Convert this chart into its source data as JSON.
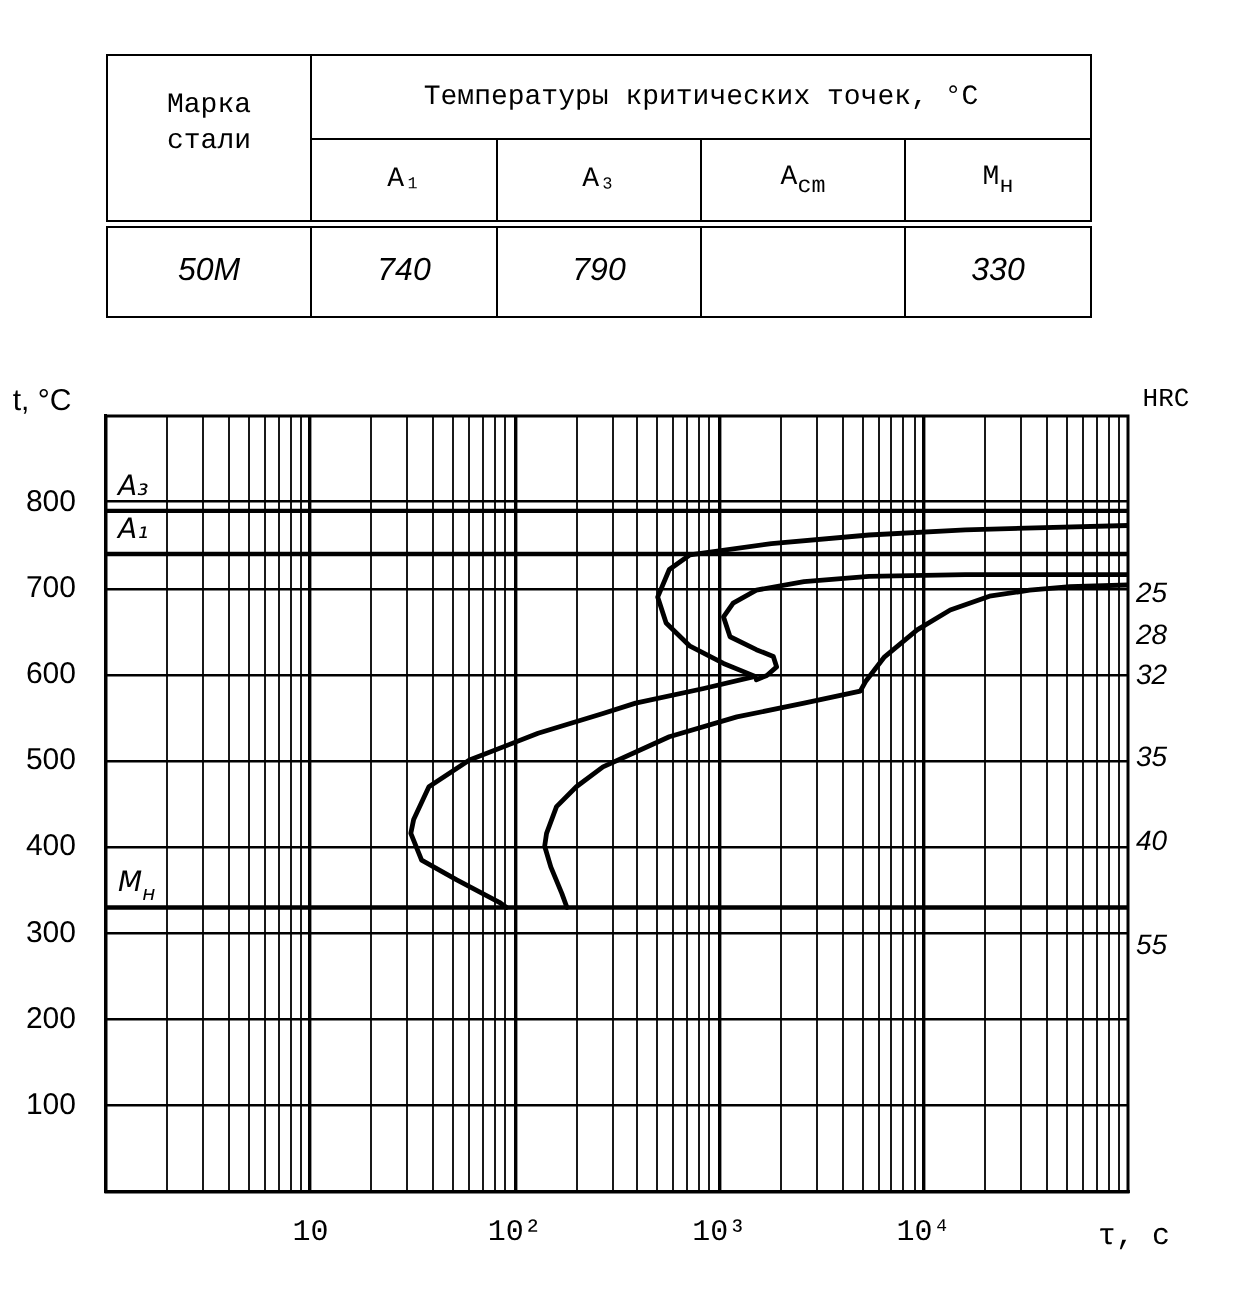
{
  "chart_data": [
    {
      "type": "other",
      "title": "Температуры критических точек, °C",
      "legend_title": "Марка стали",
      "categories": [
        "A₁",
        "A₃",
        "A$_{cm}$",
        "М$_{н}$"
      ],
      "series": [
        {
          "name": "50М",
          "values": [
            740,
            790,
            null,
            330
          ]
        }
      ],
      "data_labels": true
    },
    {
      "type": "line",
      "ylabel": "t, °C",
      "y2label": "HRC",
      "xlabel": "τ, с",
      "log": "x",
      "xlim": [
        1,
        100000
      ],
      "xticks": [
        {
          "value": 2,
          "label": null
        },
        {
          "value": 3,
          "label": null
        },
        {
          "value": 4,
          "label": null
        },
        {
          "value": 5,
          "label": null
        },
        {
          "value": 6,
          "label": null
        },
        {
          "value": 7,
          "label": null
        },
        {
          "value": 8,
          "label": null
        },
        {
          "value": 9,
          "label": null
        },
        10,
        {
          "value": 20,
          "label": null
        },
        {
          "value": 30,
          "label": null
        },
        {
          "value": 40,
          "label": null
        },
        {
          "value": 50,
          "label": null
        },
        {
          "value": 60,
          "label": null
        },
        {
          "value": 70,
          "label": null
        },
        {
          "value": 80,
          "label": null
        },
        {
          "value": 90,
          "label": null
        },
        {
          "value": 100,
          "label": "10²"
        },
        {
          "value": 200,
          "label": null
        },
        {
          "value": 300,
          "label": null
        },
        {
          "value": 400,
          "label": null
        },
        {
          "value": 500,
          "label": null
        },
        {
          "value": 600,
          "label": null
        },
        {
          "value": 700,
          "label": null
        },
        {
          "value": 800,
          "label": null
        },
        {
          "value": 900,
          "label": null
        },
        {
          "value": 1000,
          "label": "10³"
        },
        {
          "value": 2000,
          "label": null
        },
        {
          "value": 3000,
          "label": null
        },
        {
          "value": 4000,
          "label": null
        },
        {
          "value": 5000,
          "label": null
        },
        {
          "value": 6000,
          "label": null
        },
        {
          "value": 7000,
          "label": null
        },
        {
          "value": 8000,
          "label": null
        },
        {
          "value": 9000,
          "label": null
        },
        {
          "value": 10000,
          "label": "10⁴"
        },
        {
          "value": 20000,
          "label": null
        },
        {
          "value": 30000,
          "label": null
        },
        {
          "value": 40000,
          "label": null
        },
        {
          "value": 50000,
          "label": null
        },
        {
          "value": 60000,
          "label": null
        },
        {
          "value": 70000,
          "label": null
        },
        {
          "value": 80000,
          "label": null
        },
        {
          "value": 90000,
          "label": null
        }
      ],
      "ylim": [
        0,
        900
      ],
      "yticks": [
        100,
        200,
        300,
        400,
        500,
        600,
        700,
        800
      ],
      "annotations": [
        "25",
        "28",
        "32",
        "35",
        "40",
        "55"
      ],
      "grid": true,
      "legend": false,
      "marker": "none",
      "ref_lines": [
        {
          "axis": "y",
          "value": 790,
          "label": "A₃"
        },
        {
          "axis": "y",
          "value": 740,
          "label": "A₁"
        },
        {
          "axis": "y",
          "value": 330,
          "label": "М$_{н}$"
        }
      ],
      "series": [
        {
          "color": "#000000",
          "x": [
            100000,
            16000,
            5400,
            1800,
            720,
            570,
            500,
            550,
            720,
            1050,
            1500,
            840,
            390,
            270,
            130,
            60,
            38,
            32,
            31,
            35,
            52,
            84,
            91
          ],
          "values": [
            773,
            768,
            762,
            752,
            739,
            722,
            690,
            660,
            633,
            613,
            598,
            584,
            567,
            555,
            532,
            501,
            470,
            432,
            416,
            385,
            362,
            336,
            330
          ]
        },
        {
          "color": "#000000",
          "x": [
            100000,
            16000,
            5400,
            2600,
            1520,
            1170,
            1050,
            1130,
            1520,
            1840,
            1910,
            1710,
            1520
          ],
          "values": [
            716,
            716,
            714,
            708,
            698,
            683,
            667,
            644,
            629,
            621,
            609,
            599,
            594
          ]
        },
        {
          "color": "#000000",
          "x": [
            180,
            170,
            150,
            140,
            143,
            160,
            200,
            270,
            570,
            1220,
            2600,
            4900,
            5200,
            6400,
            9300,
            13500,
            21000,
            33000,
            52000,
            100000
          ],
          "values": [
            330,
            346,
            377,
            401,
            416,
            447,
            470,
            493,
            528,
            551,
            567,
            581,
            592,
            620,
            652,
            675,
            691,
            698,
            702,
            704
          ]
        }
      ]
    }
  ]
}
